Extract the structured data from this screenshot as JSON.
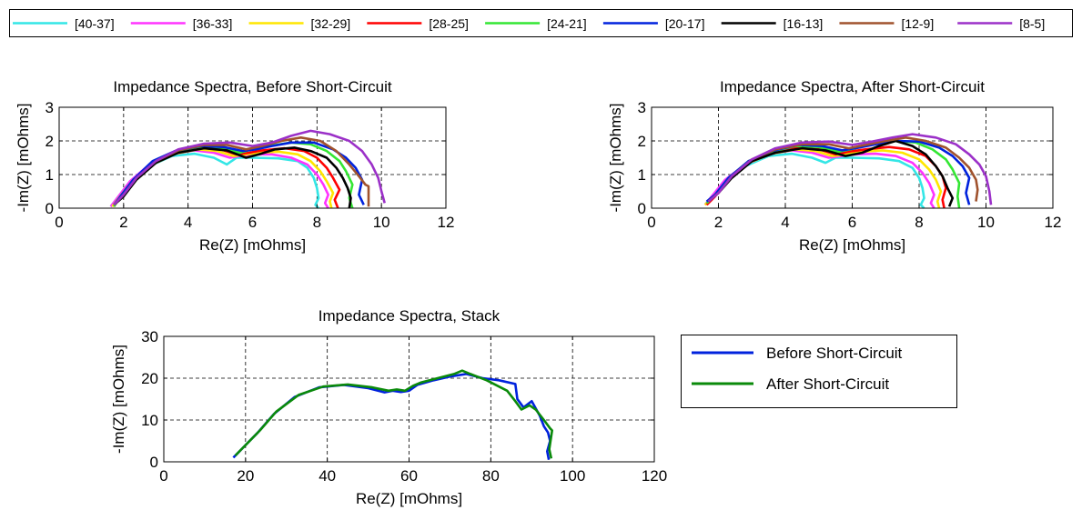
{
  "figure_legend": {
    "entries": [
      {
        "label": "[40-37]",
        "color": "#33e6e6"
      },
      {
        "label": "[36-33]",
        "color": "#ff33ff"
      },
      {
        "label": "[32-29]",
        "color": "#ffe600"
      },
      {
        "label": "[28-25]",
        "color": "#ff0000"
      },
      {
        "label": "[24-21]",
        "color": "#33e633"
      },
      {
        "label": "[20-17]",
        "color": "#0022dd"
      },
      {
        "label": "[16-13]",
        "color": "#000000"
      },
      {
        "label": "[12-9]",
        "color": "#a0522d"
      },
      {
        "label": "[8-5]",
        "color": "#9b30c8"
      }
    ]
  },
  "chart_data": [
    {
      "type": "line",
      "title": "Impedance Spectra, Before Short-Circuit",
      "xlabel": "Re(Z) [mOhms]",
      "ylabel": "-Im(Z) [mOhms]",
      "xlim": [
        0,
        12
      ],
      "ylim": [
        0,
        3
      ],
      "xticks": [
        "0",
        "2",
        "4",
        "6",
        "8",
        "10",
        "12"
      ],
      "yticks": [
        "0",
        "1",
        "2",
        "3"
      ],
      "grid": true,
      "series": [
        {
          "name": "[40-37]",
          "color": "#33e6e6",
          "x": [
            1.6,
            1.8,
            2.2,
            2.8,
            3.5,
            4.2,
            4.8,
            5.2,
            5.5,
            6.0,
            6.8,
            7.4,
            7.7,
            7.9,
            8.0,
            8.05,
            7.95,
            8.05
          ],
          "y": [
            0.05,
            0.3,
            0.8,
            1.25,
            1.55,
            1.62,
            1.5,
            1.3,
            1.5,
            1.5,
            1.48,
            1.4,
            1.2,
            0.9,
            0.6,
            0.3,
            0.1,
            0.0
          ]
        },
        {
          "name": "[36-33]",
          "color": "#ff33ff",
          "x": [
            1.6,
            1.8,
            2.2,
            2.8,
            3.5,
            4.2,
            4.8,
            5.3,
            5.6,
            6.0,
            6.6,
            7.2,
            7.7,
            8.0,
            8.2,
            8.35,
            8.25,
            8.35
          ],
          "y": [
            0.05,
            0.3,
            0.8,
            1.3,
            1.6,
            1.72,
            1.65,
            1.5,
            1.55,
            1.6,
            1.6,
            1.5,
            1.3,
            1.0,
            0.7,
            0.4,
            0.15,
            0.0
          ]
        },
        {
          "name": "[32-29]",
          "color": "#ffe600",
          "x": [
            1.65,
            1.85,
            2.3,
            2.9,
            3.6,
            4.3,
            4.9,
            5.4,
            5.8,
            6.2,
            6.8,
            7.4,
            7.8,
            8.1,
            8.3,
            8.5,
            8.4,
            8.45
          ],
          "y": [
            0.05,
            0.3,
            0.85,
            1.3,
            1.62,
            1.75,
            1.7,
            1.55,
            1.6,
            1.65,
            1.68,
            1.6,
            1.4,
            1.1,
            0.8,
            0.45,
            0.2,
            0.0
          ]
        },
        {
          "name": "[28-25]",
          "color": "#ff0000",
          "x": [
            1.7,
            1.9,
            2.3,
            2.9,
            3.6,
            4.3,
            5.0,
            5.5,
            5.9,
            6.3,
            7.0,
            7.6,
            8.0,
            8.3,
            8.5,
            8.7,
            8.55,
            8.65
          ],
          "y": [
            0.05,
            0.35,
            0.85,
            1.35,
            1.65,
            1.8,
            1.75,
            1.6,
            1.65,
            1.72,
            1.78,
            1.7,
            1.5,
            1.2,
            0.9,
            0.55,
            0.25,
            0.0
          ]
        },
        {
          "name": "[24-21]",
          "color": "#33e633",
          "x": [
            1.7,
            1.9,
            2.3,
            2.9,
            3.6,
            4.3,
            5.0,
            5.6,
            6.0,
            6.5,
            7.2,
            7.8,
            8.3,
            8.7,
            8.9,
            9.1,
            9.0,
            9.1
          ],
          "y": [
            0.05,
            0.35,
            0.85,
            1.35,
            1.68,
            1.82,
            1.8,
            1.65,
            1.75,
            1.85,
            1.95,
            1.9,
            1.7,
            1.4,
            1.1,
            0.7,
            0.3,
            0.0
          ]
        },
        {
          "name": "[20-17]",
          "color": "#0022dd",
          "x": [
            1.7,
            1.9,
            2.3,
            2.9,
            3.6,
            4.4,
            5.1,
            5.7,
            6.1,
            6.6,
            7.2,
            7.9,
            8.5,
            8.9,
            9.2,
            9.4,
            9.3,
            9.45
          ],
          "y": [
            0.1,
            0.35,
            0.85,
            1.4,
            1.7,
            1.85,
            1.82,
            1.7,
            1.75,
            1.85,
            1.95,
            1.95,
            1.75,
            1.5,
            1.2,
            0.85,
            0.4,
            0.1
          ]
        },
        {
          "name": "[16-13]",
          "color": "#000000",
          "x": [
            1.7,
            2.0,
            2.4,
            3.0,
            3.7,
            4.5,
            5.2,
            5.8,
            6.2,
            6.7,
            7.3,
            7.8,
            8.3,
            8.6,
            8.8,
            8.95,
            9.05,
            9.0
          ],
          "y": [
            0.1,
            0.35,
            0.85,
            1.35,
            1.65,
            1.78,
            1.72,
            1.5,
            1.6,
            1.75,
            1.8,
            1.7,
            1.5,
            1.2,
            0.9,
            0.6,
            0.3,
            0.0
          ]
        },
        {
          "name": "[12-9]",
          "color": "#a0522d",
          "x": [
            1.7,
            2.0,
            2.4,
            3.0,
            3.7,
            4.5,
            5.2,
            5.8,
            6.3,
            6.9,
            7.5,
            8.1,
            8.6,
            9.0,
            9.3,
            9.5,
            9.6,
            9.6
          ],
          "y": [
            0.1,
            0.4,
            0.9,
            1.4,
            1.72,
            1.88,
            1.88,
            1.75,
            1.85,
            2.0,
            2.1,
            2.0,
            1.7,
            1.3,
            0.95,
            0.7,
            0.65,
            0.05
          ]
        },
        {
          "name": "[8-5]",
          "color": "#9b30c8",
          "x": [
            1.7,
            2.0,
            2.4,
            3.0,
            3.7,
            4.5,
            5.3,
            6.0,
            6.6,
            7.2,
            7.8,
            8.4,
            9.0,
            9.4,
            9.7,
            9.9,
            10.0,
            10.1
          ],
          "y": [
            0.1,
            0.4,
            0.9,
            1.4,
            1.75,
            1.92,
            1.95,
            1.85,
            1.95,
            2.15,
            2.3,
            2.2,
            2.0,
            1.7,
            1.3,
            0.9,
            0.5,
            0.15
          ]
        }
      ]
    },
    {
      "type": "line",
      "title": "Impedance Spectra, After Short-Circuit",
      "xlabel": "Re(Z) [mOhms]",
      "ylabel": "-Im(Z) [mOhms]",
      "xlim": [
        0,
        12
      ],
      "ylim": [
        0,
        3
      ],
      "xticks": [
        "0",
        "2",
        "4",
        "6",
        "8",
        "10",
        "12"
      ],
      "yticks": [
        "0",
        "1",
        "2",
        "3"
      ],
      "grid": true,
      "series": [
        {
          "name": "[40-37]",
          "color": "#33e6e6",
          "x": [
            1.6,
            1.8,
            2.2,
            2.8,
            3.5,
            4.2,
            4.8,
            5.2,
            5.5,
            6.0,
            6.8,
            7.4,
            7.8,
            8.0,
            8.1,
            8.15,
            8.05,
            8.15
          ],
          "y": [
            0.1,
            0.35,
            0.8,
            1.25,
            1.55,
            1.62,
            1.5,
            1.35,
            1.5,
            1.5,
            1.48,
            1.4,
            1.2,
            0.9,
            0.6,
            0.3,
            0.1,
            0.0
          ]
        },
        {
          "name": "[36-33]",
          "color": "#ff33ff",
          "x": [
            1.6,
            1.8,
            2.2,
            2.8,
            3.5,
            4.2,
            4.8,
            5.3,
            5.7,
            6.1,
            6.7,
            7.3,
            7.8,
            8.1,
            8.3,
            8.45,
            8.35,
            8.45
          ],
          "y": [
            0.1,
            0.35,
            0.85,
            1.3,
            1.6,
            1.72,
            1.65,
            1.5,
            1.55,
            1.6,
            1.62,
            1.55,
            1.35,
            1.05,
            0.75,
            0.4,
            0.15,
            0.0
          ]
        },
        {
          "name": "[32-29]",
          "color": "#ffe600",
          "x": [
            1.6,
            1.85,
            2.3,
            2.9,
            3.6,
            4.3,
            4.9,
            5.4,
            5.8,
            6.3,
            6.9,
            7.5,
            8.0,
            8.3,
            8.5,
            8.65,
            8.55,
            8.6
          ],
          "y": [
            0.1,
            0.35,
            0.85,
            1.35,
            1.62,
            1.75,
            1.7,
            1.55,
            1.6,
            1.68,
            1.72,
            1.65,
            1.45,
            1.15,
            0.85,
            0.5,
            0.2,
            0.0
          ]
        },
        {
          "name": "[28-25]",
          "color": "#ff0000",
          "x": [
            1.65,
            1.9,
            2.3,
            2.9,
            3.6,
            4.3,
            5.0,
            5.5,
            5.9,
            6.4,
            7.1,
            7.7,
            8.2,
            8.5,
            8.7,
            8.8,
            8.7,
            8.75
          ],
          "y": [
            0.1,
            0.35,
            0.85,
            1.35,
            1.65,
            1.8,
            1.75,
            1.6,
            1.68,
            1.75,
            1.82,
            1.75,
            1.55,
            1.25,
            0.95,
            0.6,
            0.25,
            0.0
          ]
        },
        {
          "name": "[24-21]",
          "color": "#33e633",
          "x": [
            1.65,
            1.9,
            2.3,
            2.9,
            3.6,
            4.3,
            5.0,
            5.6,
            6.1,
            6.6,
            7.3,
            7.9,
            8.4,
            8.8,
            9.0,
            9.2,
            9.15,
            9.2
          ],
          "y": [
            0.15,
            0.4,
            0.9,
            1.4,
            1.68,
            1.85,
            1.82,
            1.68,
            1.78,
            1.9,
            2.0,
            1.95,
            1.75,
            1.45,
            1.15,
            0.75,
            0.35,
            0.0
          ]
        },
        {
          "name": "[20-17]",
          "color": "#0022dd",
          "x": [
            1.65,
            1.9,
            2.3,
            2.9,
            3.6,
            4.4,
            5.1,
            5.7,
            6.2,
            6.7,
            7.3,
            8.0,
            8.6,
            9.0,
            9.3,
            9.5,
            9.4,
            9.5
          ],
          "y": [
            0.2,
            0.4,
            0.9,
            1.4,
            1.7,
            1.88,
            1.85,
            1.72,
            1.8,
            1.9,
            2.0,
            1.98,
            1.8,
            1.55,
            1.25,
            0.9,
            0.45,
            0.1
          ]
        },
        {
          "name": "[16-13]",
          "color": "#000000",
          "x": [
            1.7,
            2.0,
            2.4,
            3.0,
            3.7,
            4.5,
            5.2,
            5.8,
            6.3,
            6.8,
            7.3,
            7.8,
            8.2,
            8.5,
            8.7,
            8.85,
            9.0,
            8.9
          ],
          "y": [
            0.2,
            0.45,
            0.9,
            1.4,
            1.65,
            1.78,
            1.72,
            1.55,
            1.65,
            1.85,
            2.0,
            1.85,
            1.6,
            1.25,
            0.95,
            0.6,
            0.3,
            0.05
          ]
        },
        {
          "name": "[12-9]",
          "color": "#a0522d",
          "x": [
            1.7,
            2.0,
            2.4,
            3.0,
            3.7,
            4.5,
            5.3,
            5.9,
            6.4,
            7.0,
            7.6,
            8.2,
            8.8,
            9.2,
            9.5,
            9.7,
            9.75,
            9.7
          ],
          "y": [
            0.2,
            0.45,
            0.95,
            1.45,
            1.75,
            1.9,
            1.9,
            1.78,
            1.88,
            2.0,
            2.1,
            2.0,
            1.8,
            1.5,
            1.2,
            0.85,
            0.55,
            0.2
          ]
        },
        {
          "name": "[8-5]",
          "color": "#9b30c8",
          "x": [
            1.7,
            2.0,
            2.4,
            3.0,
            3.7,
            4.5,
            5.3,
            6.0,
            6.6,
            7.2,
            7.8,
            8.5,
            9.1,
            9.5,
            9.8,
            10.0,
            10.1,
            10.15
          ],
          "y": [
            0.2,
            0.45,
            0.95,
            1.45,
            1.78,
            1.95,
            1.98,
            1.88,
            1.98,
            2.1,
            2.2,
            2.1,
            1.9,
            1.6,
            1.3,
            0.95,
            0.5,
            0.1
          ]
        }
      ]
    },
    {
      "type": "line",
      "title": "Impedance Spectra, Stack",
      "xlabel": "Re(Z) [mOhms]",
      "ylabel": "-Im(Z) [mOhms]",
      "xlim": [
        0,
        120
      ],
      "ylim": [
        0,
        30
      ],
      "xticks": [
        "0",
        "20",
        "40",
        "60",
        "80",
        "100",
        "120"
      ],
      "yticks": [
        "0",
        "10",
        "20",
        "30"
      ],
      "grid": true,
      "legend": "right",
      "series": [
        {
          "name": "Before Short-Circuit",
          "color": "#0022dd",
          "x": [
            17,
            18,
            20,
            23,
            27,
            32,
            38,
            44,
            50,
            54,
            56,
            58,
            60,
            62,
            66,
            70,
            74,
            78,
            82,
            86,
            86.5,
            88,
            90,
            92,
            93,
            94,
            94.5,
            93.8,
            94.2
          ],
          "y": [
            1,
            2,
            4,
            7,
            11.5,
            15.5,
            17.8,
            18.4,
            17.6,
            16.6,
            17.0,
            16.7,
            17.0,
            18.4,
            19.5,
            20.4,
            21.0,
            20.0,
            19.5,
            18.6,
            15.0,
            13.0,
            14.5,
            11.0,
            8.5,
            7.0,
            5.0,
            2.5,
            0.5
          ]
        },
        {
          "name": "After Short-Circuit",
          "color": "#0a8a0a",
          "x": [
            17.5,
            18.5,
            20.5,
            23.5,
            27.5,
            33,
            39,
            45,
            51,
            55,
            57,
            59,
            61,
            63,
            67,
            71,
            73,
            75,
            79,
            84,
            86,
            87.5,
            89.5,
            91,
            93,
            94.5,
            95,
            94.3,
            94.8
          ],
          "y": [
            1.5,
            2.5,
            4.5,
            7.5,
            12,
            16,
            18,
            18.5,
            17.8,
            17.0,
            17.3,
            17.0,
            18.2,
            19.0,
            20.0,
            21.0,
            21.8,
            21.0,
            19.5,
            17.0,
            14.5,
            12.5,
            13.5,
            12.5,
            10.0,
            8.0,
            7.5,
            3.0,
            0.8
          ]
        }
      ]
    }
  ]
}
